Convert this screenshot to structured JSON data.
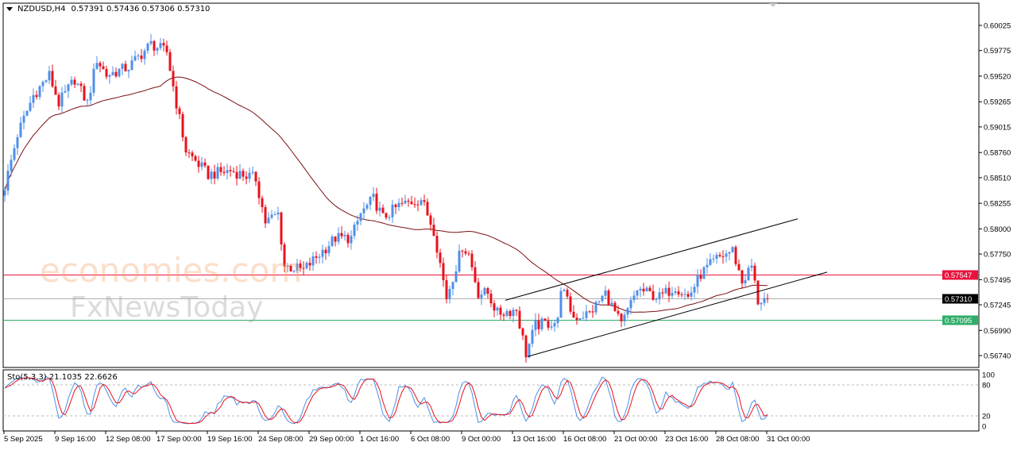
{
  "header": {
    "symbol": "NZDUSD,H4",
    "ohlc": "0.57391 0.57436 0.57306 0.57310"
  },
  "watermark": {
    "line1": "economies.com",
    "line2": "FxNewsToday"
  },
  "indicator": {
    "label": "Sto(5,3,3) 21.1035 22.6626"
  },
  "colors": {
    "bull": "#4f8fe8",
    "bear": "#e8121c",
    "ma": "#7a1010",
    "resistance": "#e8123c",
    "current": "#b0b0b0",
    "support": "#2fae6a",
    "stoch_main": "#4f8fe8",
    "stoch_signal": "#e8121c"
  },
  "chart_data": {
    "type": "candlestick",
    "timeframe": "H4",
    "price_ticks": [
      "0.60025",
      "0.59775",
      "0.59520",
      "0.59265",
      "0.59015",
      "0.58760",
      "0.58510",
      "0.58255",
      "0.58000",
      "0.57750",
      "0.57495",
      "0.57245",
      "0.56990",
      "0.56740"
    ],
    "ylim": [
      0.5674,
      0.60025
    ],
    "time_ticks": [
      "5 Sep 2025",
      "9 Sep 16:00",
      "12 Sep 08:00",
      "17 Sep 00:00",
      "19 Sep 16:00",
      "24 Sep 08:00",
      "29 Sep 00:00",
      "1 Oct 16:00",
      "6 Oct 08:00",
      "9 Oct 00:00",
      "13 Oct 16:00",
      "16 Oct 08:00",
      "21 Oct 00:00",
      "23 Oct 16:00",
      "28 Oct 08:00",
      "31 Oct 00:00"
    ],
    "price_path_bar_close": [
      [
        0,
        0.5842
      ],
      [
        4,
        0.5894
      ],
      [
        9,
        0.5933
      ],
      [
        14,
        0.5953
      ],
      [
        17,
        0.5925
      ],
      [
        22,
        0.5949
      ],
      [
        26,
        0.5925
      ],
      [
        29,
        0.5969
      ],
      [
        32,
        0.5953
      ],
      [
        39,
        0.5961
      ],
      [
        46,
        0.5984
      ],
      [
        51,
        0.5976
      ],
      [
        54,
        0.5925
      ],
      [
        57,
        0.5878
      ],
      [
        64,
        0.5854
      ],
      [
        71,
        0.5858
      ],
      [
        79,
        0.585
      ],
      [
        82,
        0.5807
      ],
      [
        86,
        0.5815
      ],
      [
        88,
        0.5763
      ],
      [
        94,
        0.5759
      ],
      [
        99,
        0.5775
      ],
      [
        104,
        0.5791
      ],
      [
        109,
        0.5791
      ],
      [
        112,
        0.5815
      ],
      [
        116,
        0.583
      ],
      [
        119,
        0.5811
      ],
      [
        124,
        0.5823
      ],
      [
        131,
        0.583
      ],
      [
        135,
        0.5799
      ],
      [
        139,
        0.5732
      ],
      [
        144,
        0.5783
      ],
      [
        146,
        0.5775
      ],
      [
        149,
        0.5736
      ],
      [
        152,
        0.5736
      ],
      [
        155,
        0.5716
      ],
      [
        161,
        0.572
      ],
      [
        164,
        0.5676
      ],
      [
        167,
        0.5704
      ],
      [
        174,
        0.5708
      ],
      [
        175,
        0.5743
      ],
      [
        179,
        0.5712
      ],
      [
        184,
        0.5716
      ],
      [
        189,
        0.5736
      ],
      [
        194,
        0.5704
      ],
      [
        199,
        0.574
      ],
      [
        206,
        0.5732
      ],
      [
        211,
        0.5743
      ],
      [
        215,
        0.5732
      ],
      [
        219,
        0.5755
      ],
      [
        224,
        0.577
      ],
      [
        229,
        0.5779
      ],
      [
        232,
        0.5747
      ],
      [
        235,
        0.5763
      ],
      [
        237,
        0.5728
      ],
      [
        240,
        0.5731
      ]
    ],
    "moving_average_period": 50,
    "horizontal_levels": [
      {
        "price": "0.57547",
        "role": "resistance"
      },
      {
        "price": "0.57310",
        "role": "current"
      },
      {
        "price": "0.57095",
        "role": "support"
      }
    ],
    "channel": {
      "upper": [
        [
          157.5,
          0.5729
        ],
        [
          249.5,
          0.581
        ]
      ],
      "lower": [
        [
          164.5,
          0.5673
        ],
        [
          258.75,
          0.5757
        ]
      ]
    },
    "stochastic": {
      "k": 5,
      "d": 3,
      "slowing": 3,
      "levels": [
        "100",
        "80",
        "20",
        "0"
      ],
      "main": 21.1035,
      "signal": 22.6626
    }
  }
}
